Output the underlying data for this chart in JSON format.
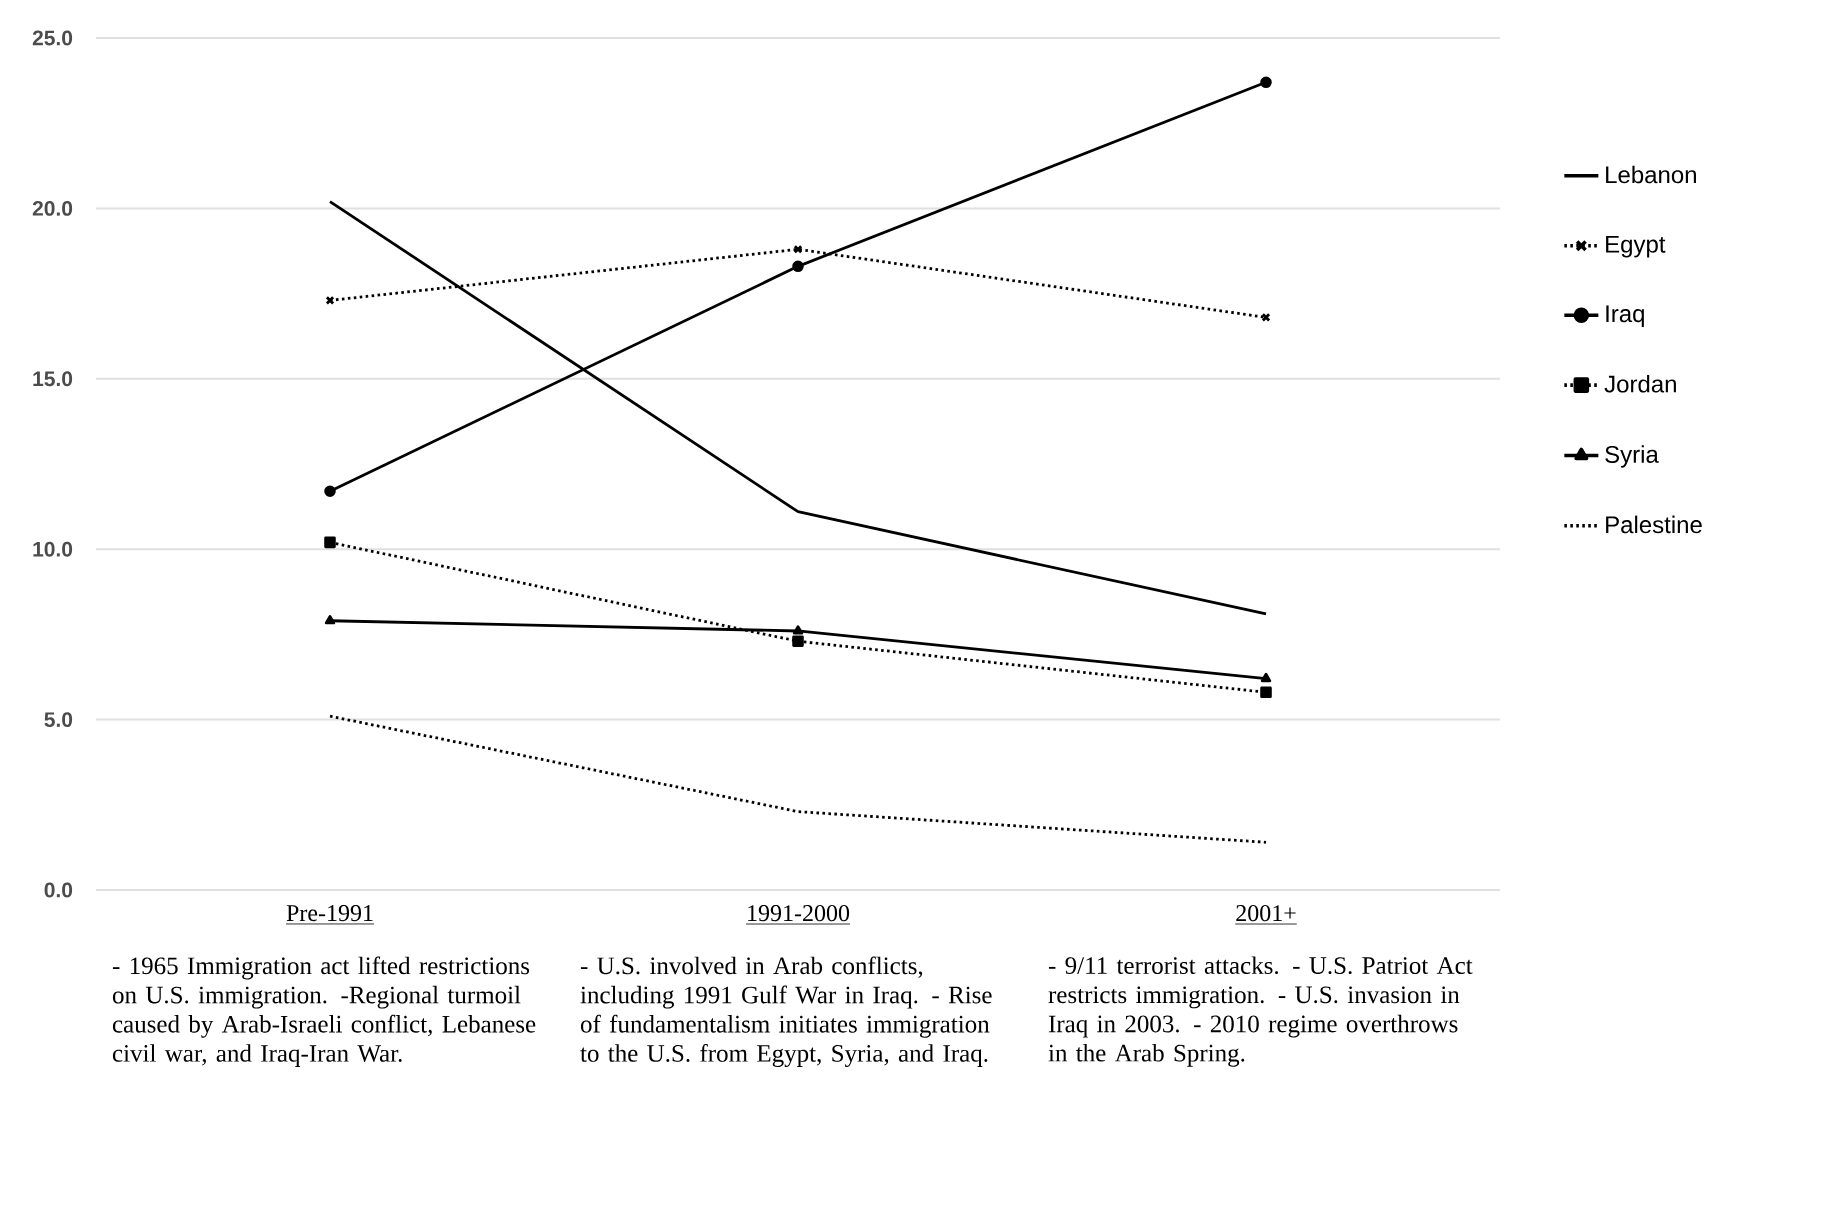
{
  "chart_data": {
    "type": "line",
    "categories": [
      "Pre-1991",
      "1991-2000",
      "2001+"
    ],
    "series": [
      {
        "name": "Lebanon",
        "color": "#000000",
        "values": [
          20.2,
          11.1,
          8.1
        ],
        "marker": "none",
        "line_style": "solid"
      },
      {
        "name": "Egypt",
        "color": "#000000",
        "values": [
          17.3,
          18.8,
          16.8
        ],
        "marker": "cross",
        "line_style": "dotted"
      },
      {
        "name": "Iraq",
        "color": "#000000",
        "values": [
          11.7,
          18.3,
          23.7
        ],
        "marker": "circle",
        "line_style": "solid"
      },
      {
        "name": "Jordan",
        "color": "#000000",
        "values": [
          10.2,
          7.3,
          5.8
        ],
        "marker": "square",
        "line_style": "dotted"
      },
      {
        "name": "Syria",
        "color": "#000000",
        "values": [
          7.9,
          7.6,
          6.2
        ],
        "marker": "triangle",
        "line_style": "solid"
      },
      {
        "name": "Palestine",
        "color": "#000000",
        "values": [
          5.1,
          2.3,
          1.4
        ],
        "marker": "none",
        "line_style": "dotted"
      }
    ],
    "ylim": [
      0,
      25
    ],
    "yticks": [
      {
        "value": 0,
        "label": "0.0"
      },
      {
        "value": 5,
        "label": "5.0"
      },
      {
        "value": 10,
        "label": "10.0"
      },
      {
        "value": 15,
        "label": "15.0"
      },
      {
        "value": 20,
        "label": "20.0"
      },
      {
        "value": 25,
        "label": "25.0"
      }
    ],
    "grid": "y",
    "legend": "right",
    "annotations": [
      "- 1965 Immigration act lifted restrictions on U.S. immigration. -Regional turmoil caused by Arab-Israeli conflict, Lebanese civil war, and Iraq-Iran War.",
      "- U.S. involved in Arab conflicts, including 1991 Gulf War in Iraq. - Rise of fundamentalism initiates immigration to the U.S. from Egypt, Syria, and Iraq.",
      "- 9/11 terrorist attacks. - U.S. Patriot Act restricts immigration. - U.S. invasion in Iraq in 2003. - 2010 regime overthrows in the Arab Spring."
    ]
  }
}
